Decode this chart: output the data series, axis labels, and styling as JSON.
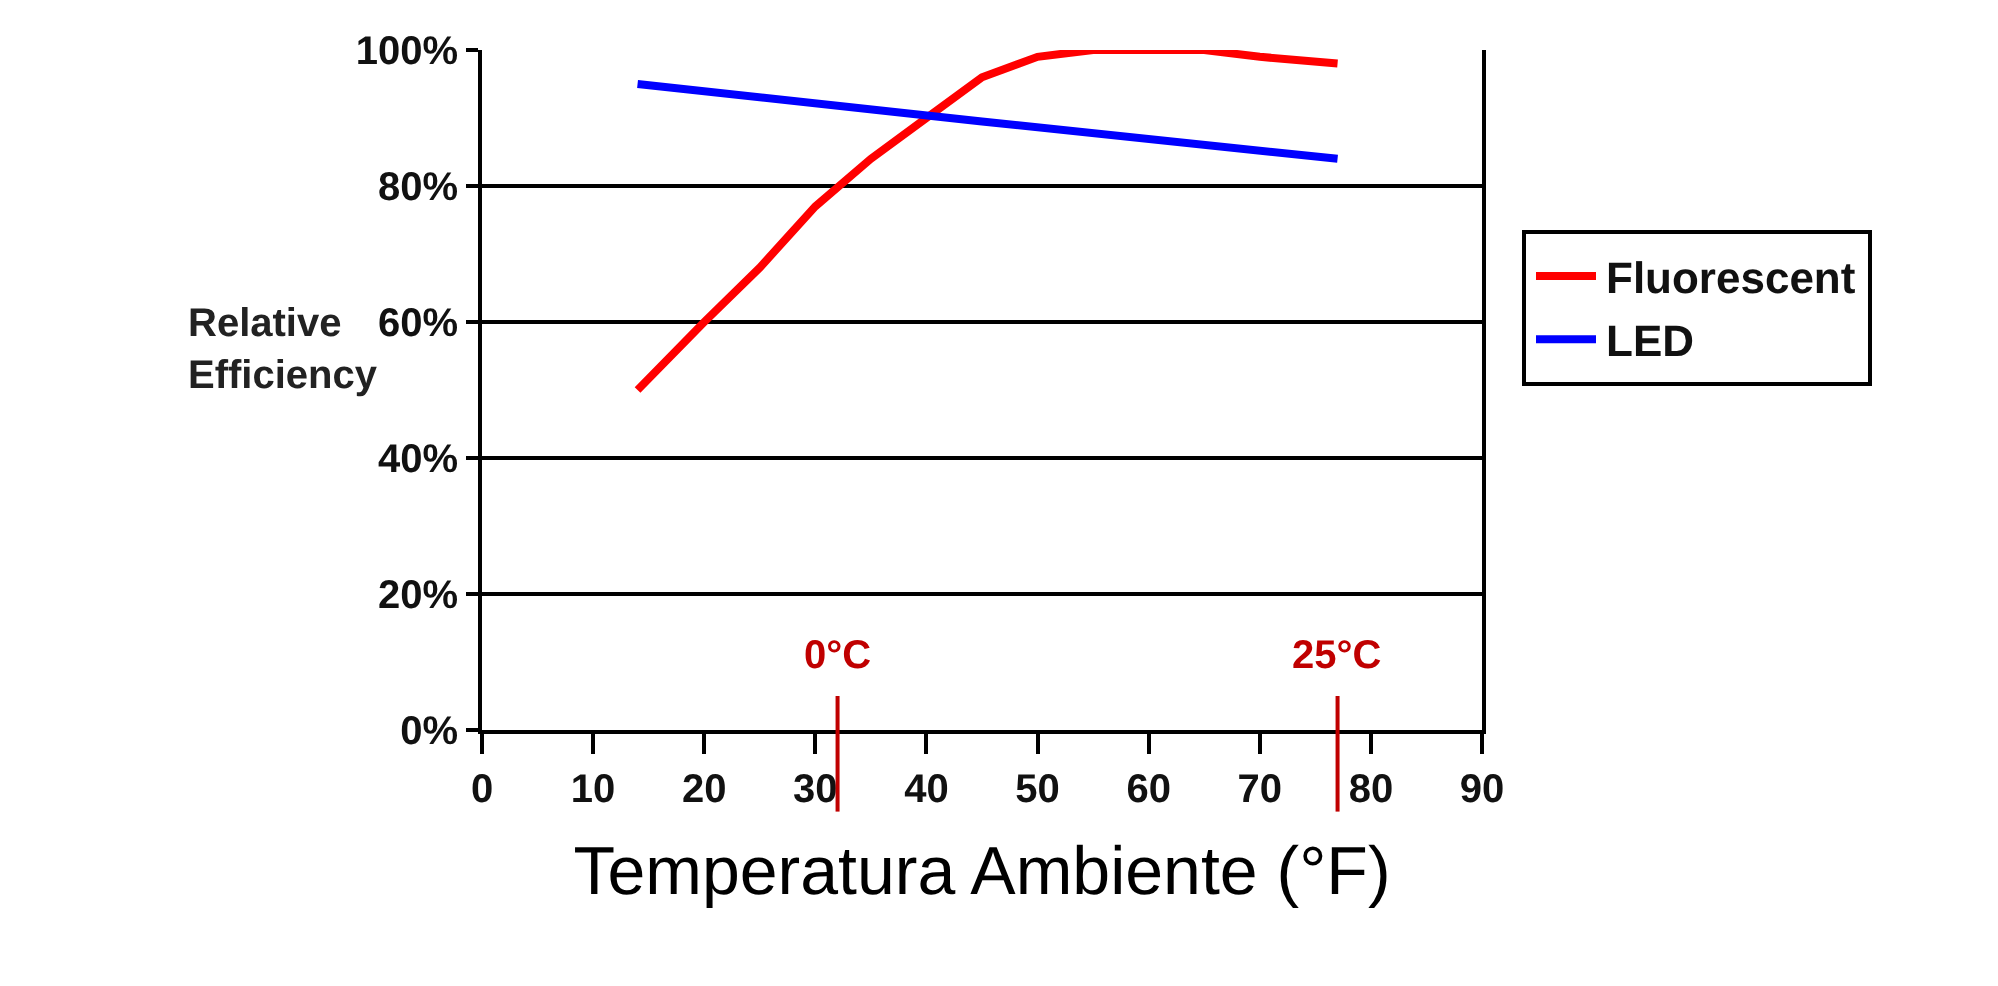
{
  "chart_data": {
    "type": "line",
    "xlabel": "Temperatura Ambiente (°F)",
    "ylabel": "Relative Efficiency",
    "series": [
      {
        "name": "Fluorescent",
        "color": "#ff0000",
        "x": [
          14,
          20,
          25,
          30,
          35,
          40,
          45,
          50,
          55,
          60,
          65,
          70,
          77
        ],
        "values": [
          50,
          60,
          68,
          77,
          84,
          90,
          96,
          99,
          100,
          100,
          100,
          99,
          98
        ]
      },
      {
        "name": "LED",
        "color": "#0000ff",
        "x": [
          14,
          45,
          77
        ],
        "values": [
          95,
          89.5,
          84
        ]
      }
    ],
    "xlim": [
      0,
      90
    ],
    "xticks": [
      0,
      10,
      20,
      30,
      40,
      50,
      60,
      70,
      80,
      90
    ],
    "ylim": [
      0,
      100
    ],
    "yticks": [
      {
        "value": 0,
        "label": "0%"
      },
      {
        "value": 20,
        "label": "20%"
      },
      {
        "value": 40,
        "label": "40%"
      },
      {
        "value": 60,
        "label": "60%"
      },
      {
        "value": 80,
        "label": "80%"
      },
      {
        "value": 100,
        "label": "100%"
      }
    ],
    "grid": "y",
    "legend": "right",
    "marker": "none",
    "line_style": "solid",
    "ref_lines": [
      {
        "axis": "x",
        "value": 32,
        "label": "0°C",
        "color": "#c00000"
      },
      {
        "axis": "x",
        "value": 77,
        "label": "25°C",
        "color": "#c00000"
      }
    ]
  }
}
